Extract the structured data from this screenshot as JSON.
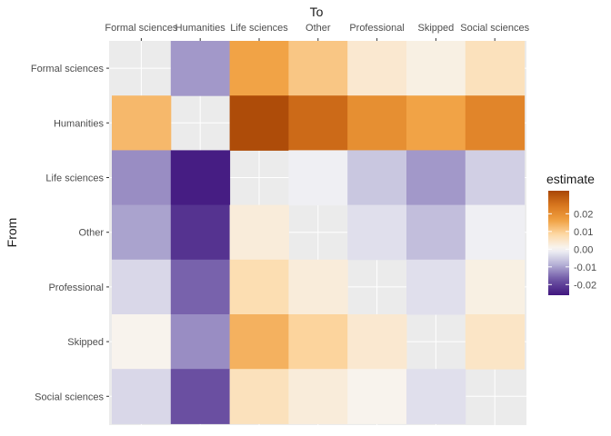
{
  "chart_data": {
    "type": "heatmap",
    "title": "",
    "xlabel": "To",
    "ylabel": "From",
    "x_categories": [
      "Formal sciences",
      "Humanities",
      "Life sciences",
      "Other",
      "Professional",
      "Skipped",
      "Social sciences"
    ],
    "y_categories": [
      "Formal sciences",
      "Humanities",
      "Life sciences",
      "Other",
      "Professional",
      "Skipped",
      "Social sciences"
    ],
    "x_axis_position": "top",
    "values": [
      [
        null,
        -0.011,
        0.016,
        0.011,
        0.004,
        0.002,
        0.006
      ],
      [
        0.013,
        null,
        0.032,
        0.027,
        0.02,
        0.016,
        0.022
      ],
      [
        -0.012,
        -0.025,
        null,
        -0.001,
        -0.006,
        -0.011,
        -0.005
      ],
      [
        -0.01,
        -0.022,
        0.003,
        null,
        -0.003,
        -0.007,
        -0.001
      ],
      [
        -0.004,
        -0.016,
        0.007,
        0.003,
        null,
        -0.003,
        0.002
      ],
      [
        0.001,
        -0.012,
        0.014,
        0.009,
        0.004,
        null,
        0.005
      ],
      [
        -0.004,
        -0.018,
        0.006,
        0.003,
        0.001,
        -0.003,
        null
      ]
    ],
    "legend": {
      "title": "estimate",
      "ticks": [
        0.02,
        0.01,
        0.0,
        -0.01,
        -0.02
      ],
      "tick_labels": [
        "0.02",
        "0.01",
        "0.00",
        "-0.01",
        "-0.02"
      ],
      "range": [
        -0.026,
        0.033
      ],
      "placement": "right"
    },
    "colors": {
      "low": "#41167f",
      "mid": "#f7f7f7",
      "high": "#a84606",
      "na": "#e6e6e6",
      "panel": "#ebebeb",
      "grid": "#ffffff"
    },
    "grid": true
  }
}
